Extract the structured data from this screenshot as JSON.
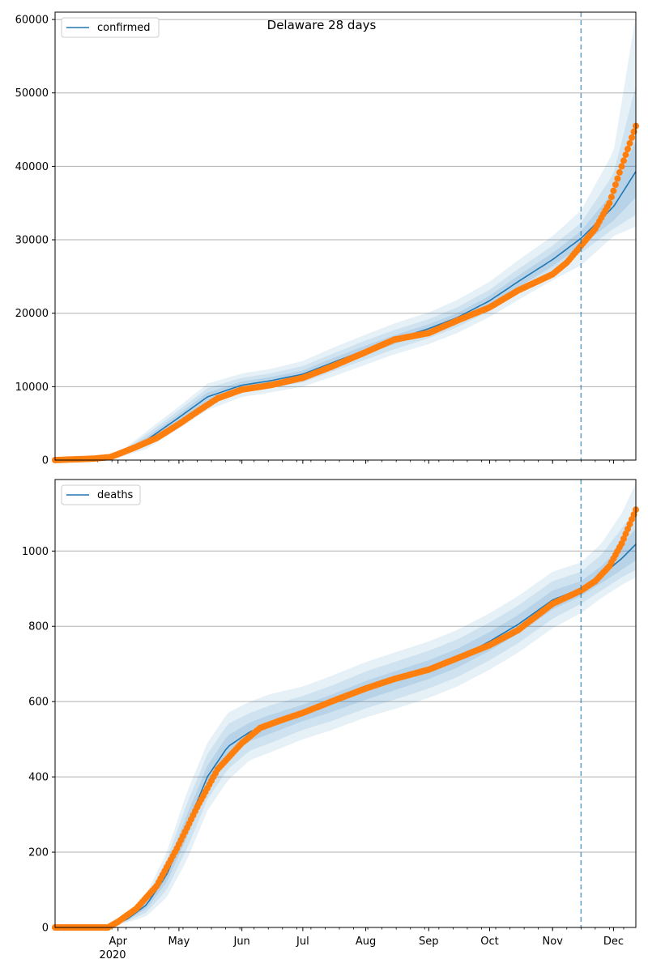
{
  "title": "Delaware 28 days",
  "colors": {
    "model": "#1f77b4",
    "observed": "#ff7f0e",
    "band": "#1f77b4",
    "grid": "#b0b0b0",
    "forecast_line": "#1f77b4"
  },
  "x_axis": {
    "month_ticks": [
      "Apr",
      "May",
      "Jun",
      "Jul",
      "Aug",
      "Sep",
      "Oct",
      "Nov",
      "Dec"
    ],
    "year_label": "2020"
  },
  "chart_data": [
    {
      "type": "line",
      "title": "Delaware 28 days",
      "legend": [
        "confirmed"
      ],
      "legend_position": "top-left",
      "grid": "y",
      "x_start": "2020-03-01",
      "x_end": "2020-12-12",
      "forecast_start": "2020-11-15",
      "ylim": [
        0,
        61000
      ],
      "yticks": [
        0,
        10000,
        20000,
        30000,
        40000,
        50000,
        60000
      ],
      "ytick_labels": [
        "0",
        "10000",
        "20000",
        "30000",
        "40000",
        "50000",
        "60000"
      ],
      "series": [
        {
          "name": "confirmed",
          "kind": "model",
          "x": [
            "2020-03-01",
            "2020-03-25",
            "2020-04-01",
            "2020-04-15",
            "2020-05-01",
            "2020-05-15",
            "2020-06-01",
            "2020-06-15",
            "2020-07-01",
            "2020-07-15",
            "2020-08-01",
            "2020-08-15",
            "2020-09-01",
            "2020-09-15",
            "2020-10-01",
            "2020-10-15",
            "2020-11-01",
            "2020-11-15",
            "2020-12-01",
            "2020-12-12"
          ],
          "y": [
            0,
            100,
            600,
            2700,
            5800,
            8600,
            10200,
            10800,
            11700,
            13200,
            15000,
            16400,
            17900,
            19400,
            21700,
            24300,
            27300,
            30200,
            34500,
            39300
          ],
          "band_inner": [
            0,
            100,
            500,
            2300,
            5300,
            8000,
            9700,
            10300,
            11200,
            12600,
            14400,
            15800,
            17300,
            18800,
            21000,
            23500,
            26400,
            29200,
            32600,
            35800
          ],
          "band_inner_hi": [
            0,
            100,
            700,
            3100,
            6300,
            9200,
            10700,
            11300,
            12200,
            13800,
            15600,
            17000,
            18500,
            20000,
            22400,
            25100,
            28200,
            31200,
            36600,
            43500
          ],
          "band_mid_lo": [
            0,
            90,
            400,
            1900,
            4800,
            7400,
            9200,
            9800,
            10600,
            12000,
            13700,
            15100,
            16600,
            18100,
            20300,
            22700,
            25500,
            28200,
            31500,
            33400
          ],
          "band_mid_hi": [
            0,
            110,
            800,
            3500,
            6800,
            9800,
            11200,
            11800,
            12800,
            14400,
            16300,
            17700,
            19200,
            20800,
            23200,
            26000,
            29200,
            32300,
            39000,
            51000
          ],
          "band_outer_lo": [
            0,
            80,
            300,
            1500,
            4300,
            6800,
            8600,
            9200,
            10000,
            11300,
            13000,
            14400,
            15800,
            17300,
            19500,
            21800,
            24500,
            26500,
            30500,
            31800
          ],
          "band_outer_hi": [
            0,
            120,
            900,
            3900,
            7300,
            10400,
            11800,
            12400,
            13500,
            15200,
            17100,
            18600,
            20100,
            21800,
            24300,
            27200,
            30500,
            34000,
            42000,
            60500
          ]
        },
        {
          "name": "",
          "kind": "observed",
          "x": [
            "2020-03-01",
            "2020-03-20",
            "2020-03-28",
            "2020-04-01",
            "2020-04-10",
            "2020-04-20",
            "2020-05-01",
            "2020-05-10",
            "2020-05-20",
            "2020-06-01",
            "2020-06-15",
            "2020-07-01",
            "2020-07-15",
            "2020-08-01",
            "2020-08-15",
            "2020-09-01",
            "2020-09-15",
            "2020-10-01",
            "2020-10-15",
            "2020-11-01",
            "2020-11-08",
            "2020-11-15",
            "2020-11-22",
            "2020-11-29",
            "2020-12-05",
            "2020-12-12"
          ],
          "y": [
            0,
            200,
            400,
            800,
            1800,
            3000,
            4900,
            6600,
            8400,
            9600,
            10200,
            11200,
            12700,
            14700,
            16400,
            17300,
            19000,
            20800,
            23100,
            25300,
            26900,
            29200,
            31500,
            35000,
            40000,
            45500
          ]
        }
      ]
    },
    {
      "type": "line",
      "legend": [
        "deaths"
      ],
      "legend_position": "top-left",
      "grid": "y",
      "x_start": "2020-03-01",
      "x_end": "2020-12-12",
      "forecast_start": "2020-11-15",
      "ylim": [
        0,
        1190
      ],
      "yticks": [
        0,
        200,
        400,
        600,
        800,
        1000
      ],
      "ytick_labels": [
        "0",
        "200",
        "400",
        "600",
        "800",
        "1000"
      ],
      "series": [
        {
          "name": "deaths",
          "kind": "model",
          "x": [
            "2020-03-01",
            "2020-03-27",
            "2020-04-05",
            "2020-04-15",
            "2020-04-25",
            "2020-05-05",
            "2020-05-15",
            "2020-05-25",
            "2020-06-05",
            "2020-06-15",
            "2020-07-01",
            "2020-07-15",
            "2020-08-01",
            "2020-08-15",
            "2020-09-01",
            "2020-09-15",
            "2020-10-01",
            "2020-10-15",
            "2020-11-01",
            "2020-11-15",
            "2020-11-25",
            "2020-12-05",
            "2020-12-12"
          ],
          "y": [
            0,
            5,
            20,
            60,
            140,
            270,
            400,
            480,
            520,
            540,
            570,
            595,
            630,
            655,
            685,
            715,
            760,
            805,
            870,
            900,
            935,
            980,
            1018
          ],
          "band_inner": [
            0,
            5,
            18,
            50,
            120,
            240,
            370,
            450,
            495,
            515,
            548,
            572,
            605,
            630,
            660,
            690,
            735,
            780,
            845,
            880,
            915,
            950,
            975
          ],
          "band_inner_hi": [
            0,
            5,
            22,
            70,
            160,
            300,
            430,
            510,
            545,
            565,
            592,
            618,
            655,
            680,
            710,
            740,
            785,
            830,
            895,
            920,
            960,
            1015,
            1060
          ],
          "band_mid_lo": [
            0,
            5,
            15,
            40,
            100,
            210,
            340,
            420,
            470,
            490,
            525,
            548,
            582,
            605,
            635,
            665,
            710,
            755,
            820,
            860,
            895,
            930,
            950
          ],
          "band_mid_hi": [
            0,
            5,
            25,
            80,
            180,
            330,
            460,
            540,
            570,
            590,
            615,
            642,
            680,
            705,
            735,
            765,
            810,
            855,
            920,
            945,
            990,
            1060,
            1110
          ],
          "band_outer_lo": [
            0,
            4,
            12,
            30,
            80,
            180,
            310,
            390,
            445,
            465,
            500,
            524,
            558,
            580,
            610,
            640,
            685,
            730,
            795,
            835,
            875,
            910,
            930
          ],
          "band_outer_hi": [
            0,
            6,
            28,
            90,
            200,
            360,
            490,
            570,
            600,
            620,
            640,
            668,
            705,
            730,
            760,
            790,
            835,
            880,
            945,
            970,
            1020,
            1100,
            1180
          ]
        },
        {
          "name": "",
          "kind": "observed",
          "x": [
            "2020-03-01",
            "2020-03-27",
            "2020-04-01",
            "2020-04-10",
            "2020-04-20",
            "2020-04-30",
            "2020-05-10",
            "2020-05-20",
            "2020-06-01",
            "2020-06-10",
            "2020-06-20",
            "2020-07-01",
            "2020-07-15",
            "2020-08-01",
            "2020-08-15",
            "2020-09-01",
            "2020-09-15",
            "2020-10-01",
            "2020-10-15",
            "2020-11-01",
            "2020-11-15",
            "2020-11-22",
            "2020-11-29",
            "2020-12-05",
            "2020-12-12"
          ],
          "y": [
            0,
            0,
            15,
            50,
            110,
            210,
            320,
            420,
            490,
            530,
            550,
            570,
            600,
            635,
            660,
            685,
            715,
            750,
            790,
            860,
            895,
            920,
            960,
            1020,
            1110
          ]
        }
      ]
    }
  ]
}
